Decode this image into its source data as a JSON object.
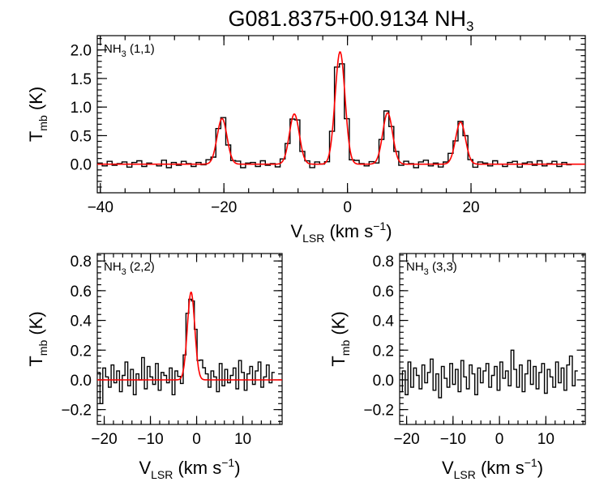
{
  "figure": {
    "title_main": "G081.8375+00.9134 NH",
    "title_sub": "3"
  },
  "chart_data": [
    {
      "type": "line",
      "panel": "NH3 (1,1)",
      "label_main": "NH",
      "label_sub": "3",
      "label_tail": " (1,1)",
      "xlabel_main": "V",
      "xlabel_sub": "LSR",
      "xlabel_tail": " (km s",
      "xlabel_sup": "−1",
      "xlabel_end": ")",
      "ylabel_main": "T",
      "ylabel_sub": "mb",
      "ylabel_tail": " (K)",
      "xlim": [
        -40.5,
        38.5
      ],
      "ylim": [
        -0.5,
        2.25
      ],
      "xticks": [
        -40,
        -20,
        0,
        20
      ],
      "xtick_labels": [
        "−40",
        "−20",
        "0",
        "20"
      ],
      "yticks": [
        0.0,
        0.5,
        1.0,
        1.5,
        2.0
      ],
      "ytick_labels": [
        "0.0",
        "0.5",
        "1.0",
        "1.5",
        "2.0"
      ],
      "spectrum": {
        "x_start": -40.5,
        "x_step": 0.8,
        "noise": [
          0.02,
          -0.03,
          0.05,
          -0.02,
          0.01,
          0.04,
          -0.05,
          0.03,
          0.06,
          -0.04,
          0.02,
          0.0,
          -0.03,
          0.07,
          -0.06,
          0.03,
          -0.02,
          0.05,
          0.01,
          -0.04,
          0.03,
          -0.01,
          0.06,
          -0.05,
          0.02,
          0.04,
          -0.03,
          0.0,
          0.05,
          -0.06,
          0.02,
          0.03,
          -0.04,
          0.06,
          -0.02,
          0.01,
          -0.05,
          0.04,
          0.02,
          -0.03,
          0.05,
          -0.01,
          0.03,
          -0.06,
          0.04,
          0.0,
          -0.02,
          0.05,
          0.08,
          -0.08,
          0.03,
          -0.04,
          0.06,
          0.01,
          -0.03,
          0.04,
          -0.05,
          0.02,
          0.06,
          -0.02,
          0.03,
          -0.04,
          0.05,
          0.01,
          -0.06,
          0.04,
          0.07,
          -0.03,
          0.02,
          -0.05,
          0.03,
          0.09,
          -0.04,
          0.01,
          0.05,
          -0.02,
          -0.06,
          0.04,
          0.02,
          -0.03,
          0.06,
          0.0,
          -0.04,
          0.03,
          0.05,
          -0.05,
          0.02,
          0.04,
          -0.02,
          0.06,
          -0.03,
          0.01,
          0.05,
          -0.04,
          0.03,
          -0.01
        ]
      },
      "fit": {
        "components": [
          {
            "center": -20.3,
            "amplitude": 0.8,
            "sigma": 0.8
          },
          {
            "center": -8.6,
            "amplitude": 0.88,
            "sigma": 0.8
          },
          {
            "center": -1.2,
            "amplitude": 1.97,
            "sigma": 0.8
          },
          {
            "center": 6.5,
            "amplitude": 0.9,
            "sigma": 0.8
          },
          {
            "center": 18.3,
            "amplitude": 0.74,
            "sigma": 0.8
          }
        ]
      }
    },
    {
      "type": "line",
      "panel": "NH3 (2,2)",
      "label_main": "NH",
      "label_sub": "3",
      "label_tail": " (2,2)",
      "xlabel_main": "V",
      "xlabel_sub": "LSR",
      "xlabel_tail": " (km s",
      "xlabel_sup": "−1",
      "xlabel_end": ")",
      "ylabel_main": "T",
      "ylabel_sub": "mb",
      "ylabel_tail": " (K)",
      "xlim": [
        -21.5,
        18.5
      ],
      "ylim": [
        -0.3,
        0.85
      ],
      "xticks": [
        -20,
        -10,
        0,
        10
      ],
      "xtick_labels": [
        "−20",
        "−10",
        "0",
        "10"
      ],
      "yticks": [
        -0.2,
        0.0,
        0.2,
        0.4,
        0.6,
        0.8
      ],
      "ytick_labels": [
        "−0.2",
        "0.0",
        "0.2",
        "0.4",
        "0.6",
        "0.8"
      ],
      "spectrum": {
        "x_start": -21.5,
        "x_step": 0.6,
        "noise": [
          0.05,
          -0.16,
          0.08,
          0.02,
          -0.05,
          0.1,
          -0.02,
          0.06,
          -0.08,
          0.03,
          0.12,
          -0.04,
          0.07,
          -0.1,
          0.04,
          0.0,
          0.15,
          -0.06,
          0.09,
          0.02,
          -0.03,
          0.11,
          -0.07,
          0.05,
          0.03,
          -0.02,
          0.08,
          -0.1,
          0.06,
          0.02,
          -0.05,
          0.04,
          0.09,
          -0.03,
          0.01,
          0.07,
          0.05,
          0.12,
          0.08,
          0.04,
          -0.05,
          0.06,
          0.02,
          -0.08,
          0.11,
          -0.04,
          0.07,
          -0.02,
          0.03,
          0.08,
          -0.06,
          0.13,
          0.05,
          -0.07,
          0.04,
          0.09,
          -0.03,
          0.06,
          0.12,
          -0.05,
          0.02,
          0.1,
          -0.02,
          0.05
        ]
      },
      "fit": {
        "components": [
          {
            "center": -1.2,
            "amplitude": 0.59,
            "sigma": 0.8
          }
        ]
      }
    },
    {
      "type": "line",
      "panel": "NH3 (3,3)",
      "label_main": "NH",
      "label_sub": "3",
      "label_tail": " (3,3)",
      "xlabel_main": "V",
      "xlabel_sub": "LSR",
      "xlabel_tail": " (km s",
      "xlabel_sup": "−1",
      "xlabel_end": ")",
      "ylabel_main": "T",
      "ylabel_sub": "mb",
      "ylabel_tail": " (K)",
      "xlim": [
        -21.5,
        18.5
      ],
      "ylim": [
        -0.3,
        0.85
      ],
      "xticks": [
        -20,
        -10,
        0,
        10
      ],
      "xtick_labels": [
        "−20",
        "−10",
        "0",
        "10"
      ],
      "yticks": [
        -0.2,
        0.0,
        0.2,
        0.4,
        0.6,
        0.8
      ],
      "ytick_labels": [
        "−0.2",
        "0.0",
        "0.2",
        "0.4",
        "0.6",
        "0.8"
      ],
      "spectrum": {
        "x_start": -21.5,
        "x_step": 0.6,
        "noise": [
          -0.08,
          0.06,
          -0.1,
          0.12,
          -0.05,
          0.08,
          0.03,
          -0.06,
          0.1,
          -0.02,
          0.05,
          0.14,
          -0.07,
          0.04,
          -0.12,
          0.09,
          0.01,
          -0.05,
          0.11,
          -0.03,
          0.07,
          -0.08,
          0.13,
          0.02,
          -0.06,
          0.1,
          0.04,
          -0.1,
          0.08,
          -0.02,
          0.06,
          0.11,
          -0.05,
          0.03,
          0.09,
          -0.07,
          0.12,
          0.01,
          0.06,
          -0.04,
          0.2,
          0.07,
          -0.05,
          0.1,
          -0.08,
          0.04,
          0.13,
          -0.03,
          0.09,
          -0.06,
          0.05,
          0.11,
          -0.09,
          0.07,
          0.02,
          -0.05,
          0.12,
          -0.02,
          0.08,
          -0.07,
          0.1,
          0.16,
          -0.04,
          0.06
        ]
      }
    }
  ]
}
